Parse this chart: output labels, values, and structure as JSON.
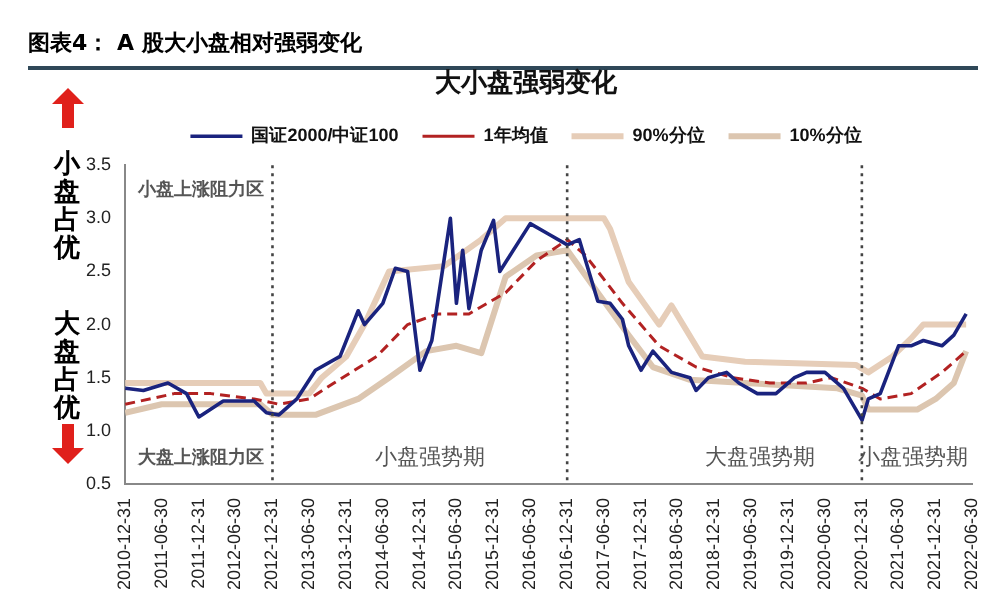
{
  "chart_data": {
    "type": "line",
    "title": "图表4： A 股大小盘相对强弱变化",
    "subtitle": "大小盘强弱变化",
    "series": [
      {
        "name": "国证2000/中证100",
        "color": "#1a237e",
        "x": [
          "2011-01",
          "2011-04",
          "2011-08",
          "2011-11",
          "2012-01",
          "2012-05",
          "2012-10",
          "2012-12",
          "2013-02",
          "2013-05",
          "2013-08",
          "2013-12",
          "2014-03",
          "2014-04",
          "2014-07",
          "2014-09",
          "2014-11",
          "2015-01",
          "2015-03",
          "2015-06",
          "2015-07",
          "2015-08",
          "2015-09",
          "2015-11",
          "2016-01",
          "2016-02",
          "2016-07",
          "2016-10",
          "2017-01",
          "2017-03",
          "2017-06",
          "2017-08",
          "2017-10",
          "2017-11",
          "2018-01",
          "2018-03",
          "2018-06",
          "2018-09",
          "2018-10",
          "2018-12",
          "2019-03",
          "2019-05",
          "2019-08",
          "2019-11",
          "2020-02",
          "2020-04",
          "2020-07",
          "2020-10",
          "2021-01",
          "2021-02",
          "2021-04",
          "2021-07",
          "2021-09",
          "2021-11",
          "2022-02",
          "2022-04",
          "2022-06"
        ],
        "values": [
          1.4,
          1.38,
          1.45,
          1.35,
          1.13,
          1.28,
          1.28,
          1.17,
          1.15,
          1.3,
          1.57,
          1.7,
          2.13,
          2.0,
          2.2,
          2.53,
          2.5,
          1.57,
          1.85,
          3.0,
          2.2,
          2.7,
          2.15,
          2.7,
          2.98,
          2.5,
          2.95,
          2.85,
          2.75,
          2.8,
          2.22,
          2.2,
          2.05,
          1.8,
          1.57,
          1.75,
          1.55,
          1.5,
          1.38,
          1.5,
          1.55,
          1.45,
          1.35,
          1.35,
          1.5,
          1.55,
          1.55,
          1.4,
          1.1,
          1.3,
          1.35,
          1.8,
          1.8,
          1.85,
          1.8,
          1.9,
          2.1
        ]
      },
      {
        "name": "1年均值",
        "color": "#b22222",
        "line_style": "dashed",
        "x": [
          "2011-01",
          "2011-09",
          "2012-03",
          "2012-10",
          "2013-02",
          "2013-07",
          "2013-11",
          "2014-06",
          "2014-11",
          "2015-04",
          "2015-09",
          "2016-03",
          "2016-08",
          "2017-01",
          "2017-04",
          "2017-10",
          "2018-04",
          "2018-10",
          "2019-04",
          "2019-10",
          "2020-04",
          "2020-08",
          "2021-01",
          "2021-04",
          "2021-09",
          "2022-02",
          "2022-06"
        ],
        "values": [
          1.25,
          1.35,
          1.35,
          1.3,
          1.25,
          1.3,
          1.45,
          1.7,
          2.0,
          2.1,
          2.1,
          2.3,
          2.6,
          2.8,
          2.65,
          2.2,
          1.8,
          1.6,
          1.5,
          1.45,
          1.45,
          1.5,
          1.4,
          1.3,
          1.35,
          1.55,
          1.75
        ]
      },
      {
        "name": "90%分位",
        "color": "#e6cdb8",
        "x": [
          "2011-01",
          "2012-11",
          "2012-12",
          "2013-07",
          "2013-09",
          "2014-01",
          "2014-04",
          "2014-08",
          "2015-05",
          "2015-11",
          "2016-03",
          "2017-07",
          "2017-08",
          "2017-11",
          "2018-04",
          "2018-06",
          "2018-11",
          "2019-06",
          "2020-12",
          "2021-02",
          "2021-06",
          "2021-09",
          "2021-11",
          "2022-06"
        ],
        "values": [
          1.45,
          1.45,
          1.35,
          1.35,
          1.5,
          1.7,
          2.0,
          2.5,
          2.55,
          2.8,
          3.0,
          3.0,
          2.9,
          2.4,
          2.0,
          2.18,
          1.7,
          1.65,
          1.62,
          1.55,
          1.7,
          1.87,
          2.0,
          2.0
        ]
      },
      {
        "name": "10%分位",
        "color": "#dcc6b0",
        "x": [
          "2011-01",
          "2011-07",
          "2012-11",
          "2013-01",
          "2013-08",
          "2014-03",
          "2014-08",
          "2015-02",
          "2015-07",
          "2015-11",
          "2016-03",
          "2016-08",
          "2017-01",
          "2017-06",
          "2017-11",
          "2018-03",
          "2018-09",
          "2019-06",
          "2020-09",
          "2021-01",
          "2021-02",
          "2021-10",
          "2022-01",
          "2022-04",
          "2022-06"
        ],
        "values": [
          1.17,
          1.25,
          1.25,
          1.15,
          1.15,
          1.3,
          1.5,
          1.75,
          1.8,
          1.73,
          2.45,
          2.65,
          2.7,
          2.3,
          1.9,
          1.6,
          1.48,
          1.45,
          1.4,
          1.33,
          1.2,
          1.2,
          1.3,
          1.45,
          1.75
        ]
      }
    ],
    "xlim": [
      "2010-12-31",
      "2022-06-30"
    ],
    "xticks": [
      "2010-12-31",
      "2011-06-30",
      "2011-12-31",
      "2012-06-30",
      "2012-12-31",
      "2013-06-30",
      "2013-12-31",
      "2014-06-30",
      "2014-12-31",
      "2015-06-30",
      "2015-12-31",
      "2016-06-30",
      "2016-12-31",
      "2017-06-30",
      "2017-12-31",
      "2018-06-30",
      "2018-12-31",
      "2019-06-30",
      "2019-12-31",
      "2020-06-30",
      "2020-12-31",
      "2021-06-30",
      "2021-12-31",
      "2022-06-30"
    ],
    "ylim": [
      0.5,
      3.5
    ],
    "yticks": [
      0.5,
      {
        "value": 1,
        "label": "1.0"
      },
      1.5,
      {
        "value": 2,
        "label": "2.0"
      },
      2.5,
      {
        "value": 3,
        "label": "3.0"
      },
      3.5
    ],
    "ref_lines": [
      {
        "axis": "x",
        "value": "2012-12-31",
        "color": "#444444",
        "line_style": "dotted"
      },
      {
        "axis": "x",
        "value": "2016-12-31",
        "color": "#444444",
        "line_style": "dotted"
      },
      {
        "axis": "x",
        "value": "2020-12-31",
        "color": "#444444",
        "line_style": "dotted"
      }
    ],
    "annotations": [
      "小盘占优",
      "大盘占优",
      "小盘上涨阻力区",
      "大盘上涨阻力区",
      "小盘强势期",
      "大盘强势期",
      "小盘强势期"
    ],
    "legend": "top",
    "grid": false,
    "marker": "none"
  }
}
